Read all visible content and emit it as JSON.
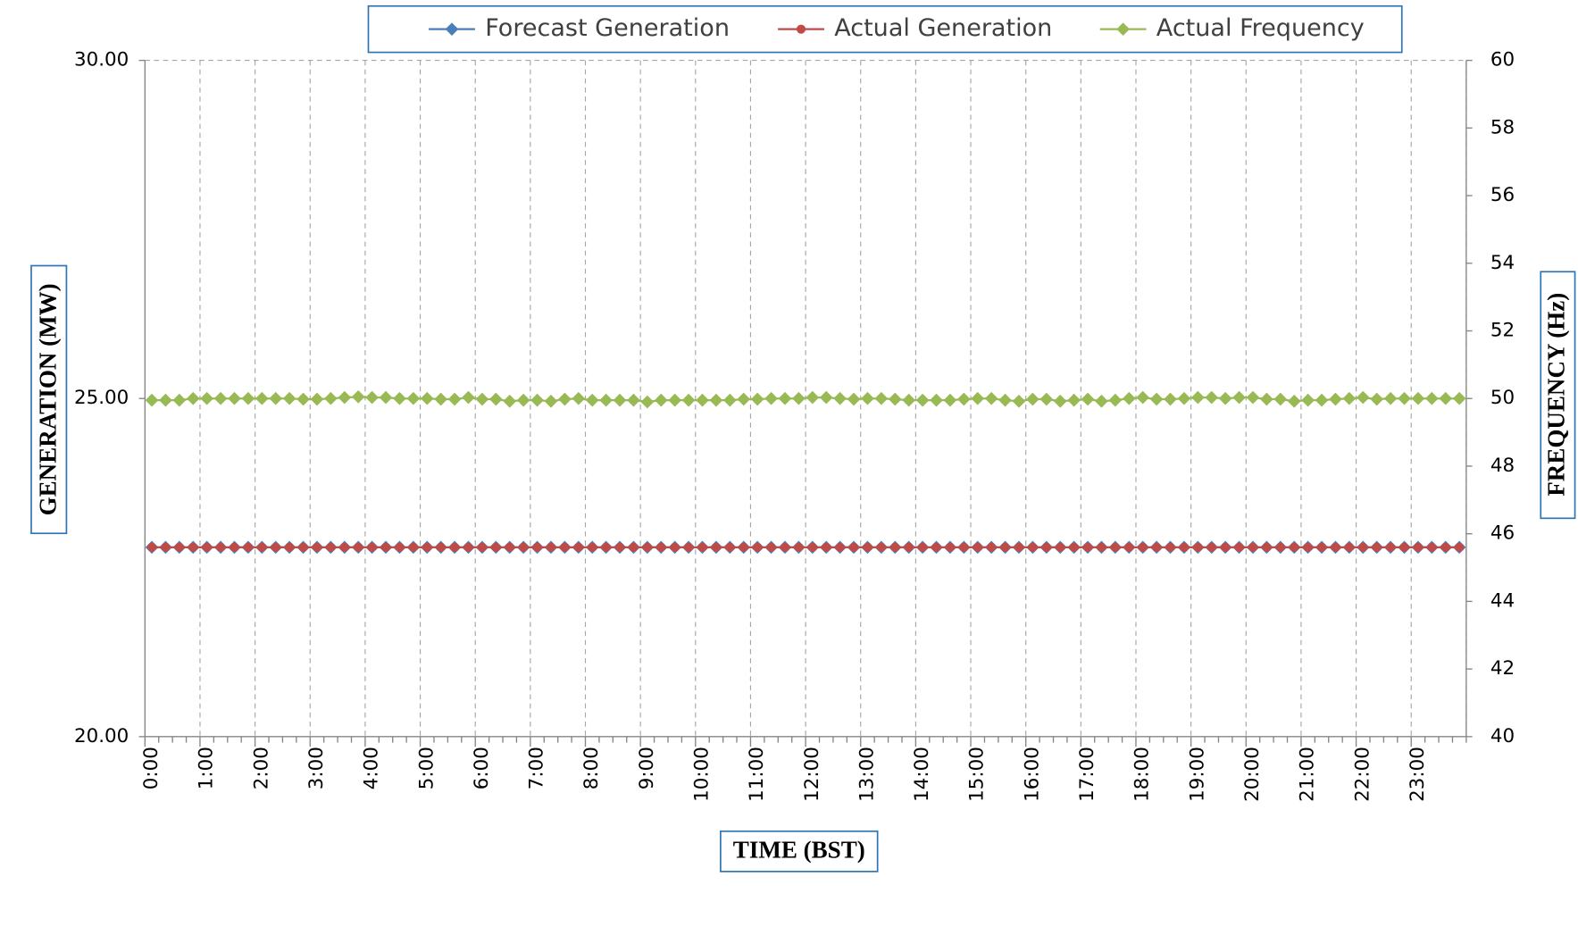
{
  "chart_data": {
    "type": "line",
    "y_label": "GENERATION (MW)",
    "y2_label": "FREQUENCY (Hz)",
    "x_label": "TIME (BST)",
    "categories": [
      "0:00",
      null,
      null,
      null,
      "1:00",
      null,
      null,
      null,
      "2:00",
      null,
      null,
      null,
      "3:00",
      null,
      null,
      null,
      "4:00",
      null,
      null,
      null,
      "5:00",
      null,
      null,
      null,
      "6:00",
      null,
      null,
      null,
      "7:00",
      null,
      null,
      null,
      "8:00",
      null,
      null,
      null,
      "9:00",
      null,
      null,
      null,
      "10:00",
      null,
      null,
      null,
      "11:00",
      null,
      null,
      null,
      "12:00",
      null,
      null,
      null,
      "13:00",
      null,
      null,
      null,
      "14:00",
      null,
      null,
      null,
      "15:00",
      null,
      null,
      null,
      "16:00",
      null,
      null,
      null,
      "17:00",
      null,
      null,
      null,
      "18:00",
      null,
      null,
      null,
      "19:00",
      null,
      null,
      null,
      "20:00",
      null,
      null,
      null,
      "21:00",
      null,
      null,
      null,
      "22:00",
      null,
      null,
      null,
      "23:00",
      null,
      null,
      null
    ],
    "series": [
      {
        "name": "Forecast Generation",
        "color": "#4a7ebb",
        "marker": "diamond",
        "values": [
          22.8,
          22.8,
          22.8,
          22.8,
          22.8,
          22.8,
          22.8,
          22.8,
          22.8,
          22.8,
          22.8,
          22.8,
          22.8,
          22.8,
          22.8,
          22.8,
          22.8,
          22.8,
          22.8,
          22.8,
          22.8,
          22.8,
          22.8,
          22.8,
          22.8,
          22.8,
          22.8,
          22.8,
          22.8,
          22.8,
          22.8,
          22.8,
          22.8,
          22.8,
          22.8,
          22.8,
          22.8,
          22.8,
          22.8,
          22.8,
          22.8,
          22.8,
          22.8,
          22.8,
          22.8,
          22.8,
          22.8,
          22.8,
          22.8,
          22.8,
          22.8,
          22.8,
          22.8,
          22.8,
          22.8,
          22.8,
          22.8,
          22.8,
          22.8,
          22.8,
          22.8,
          22.8,
          22.8,
          22.8,
          22.8,
          22.8,
          22.8,
          22.8,
          22.8,
          22.8,
          22.8,
          22.8,
          22.8,
          22.8,
          22.8,
          22.8,
          22.8,
          22.8,
          22.8,
          22.8,
          22.8,
          22.8,
          22.8,
          22.8,
          22.8,
          22.8,
          22.8,
          22.8,
          22.8,
          22.8,
          22.8,
          22.8,
          22.8,
          22.8,
          22.8,
          22.8
        ]
      },
      {
        "name": "Actual Generation",
        "color": "#be4b48",
        "marker": "circle",
        "values": [
          22.8,
          22.8,
          22.8,
          22.8,
          22.8,
          22.8,
          22.8,
          22.8,
          22.8,
          22.8,
          22.8,
          22.8,
          22.8,
          22.8,
          22.8,
          22.8,
          22.8,
          22.8,
          22.8,
          22.8,
          22.8,
          22.8,
          22.8,
          22.8,
          22.8,
          22.8,
          22.8,
          22.8,
          22.8,
          22.8,
          22.8,
          22.8,
          22.8,
          22.8,
          22.8,
          22.8,
          22.8,
          22.8,
          22.8,
          22.8,
          22.8,
          22.8,
          22.8,
          22.8,
          22.8,
          22.8,
          22.8,
          22.8,
          22.8,
          22.8,
          22.8,
          22.8,
          22.8,
          22.8,
          22.8,
          22.8,
          22.8,
          22.8,
          22.8,
          22.8,
          22.8,
          22.8,
          22.8,
          22.8,
          22.8,
          22.8,
          22.8,
          22.8,
          22.8,
          22.8,
          22.8,
          22.8,
          22.8,
          22.8,
          22.8,
          22.8,
          22.8,
          22.8,
          22.8,
          22.8,
          22.8,
          22.8,
          22.8,
          22.8,
          22.8,
          22.8,
          22.8,
          22.8,
          22.8,
          22.8,
          22.8,
          22.8,
          22.8,
          22.8,
          22.8,
          22.8
        ]
      },
      {
        "name": "Actual Frequency",
        "color": "#98b954",
        "marker": "diamond",
        "axis": "y2",
        "values": [
          49.95,
          49.95,
          49.95,
          50,
          50,
          50,
          50,
          50,
          50,
          50,
          50,
          49.98,
          49.98,
          50,
          50.03,
          50.05,
          50.03,
          50.03,
          50,
          50,
          50,
          49.98,
          49.98,
          50.03,
          49.98,
          49.98,
          49.92,
          49.95,
          49.95,
          49.92,
          49.98,
          50,
          49.95,
          49.95,
          49.95,
          49.95,
          49.9,
          49.95,
          49.95,
          49.95,
          49.95,
          49.95,
          49.95,
          49.98,
          49.98,
          50,
          50,
          50,
          50.03,
          50.03,
          50,
          49.98,
          50,
          50,
          49.98,
          49.95,
          49.95,
          49.95,
          49.95,
          49.98,
          50,
          50,
          49.95,
          49.92,
          49.98,
          49.98,
          49.92,
          49.95,
          49.98,
          49.92,
          49.95,
          50,
          50.03,
          49.98,
          49.98,
          50,
          50.03,
          50.03,
          50,
          50.03,
          50.03,
          49.98,
          49.98,
          49.92,
          49.95,
          49.95,
          49.98,
          50,
          50.03,
          49.98,
          50,
          50,
          50,
          50,
          50,
          50
        ]
      }
    ],
    "ylim": [
      20,
      30
    ],
    "yticks": [
      {
        "value": 20,
        "label": "20.00"
      },
      {
        "value": 25,
        "label": "25.00"
      },
      {
        "value": 30,
        "label": "30.00"
      }
    ],
    "y2lim": [
      40,
      60
    ],
    "y2ticks": [
      40,
      42,
      44,
      46,
      48,
      50,
      52,
      54,
      56,
      58,
      60
    ],
    "grid": true,
    "legend": "top"
  }
}
